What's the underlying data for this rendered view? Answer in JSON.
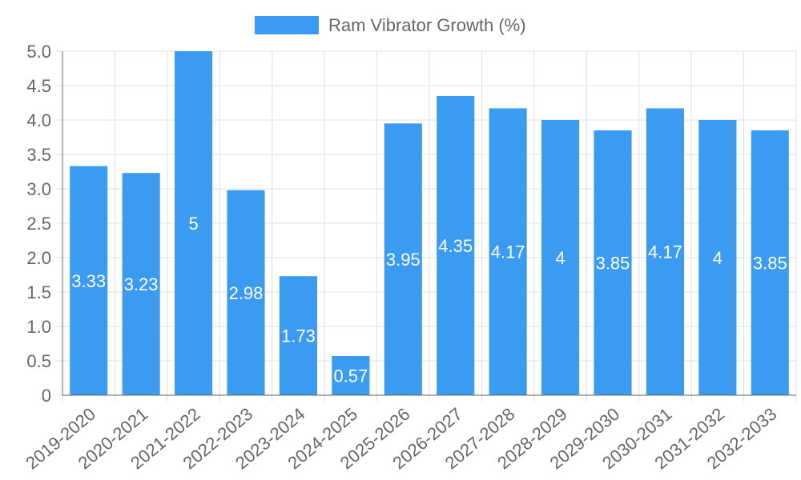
{
  "chart_data": {
    "type": "bar",
    "title": "",
    "xlabel": "",
    "ylabel": "",
    "categories": [
      "2019-2020",
      "2020-2021",
      "2021-2022",
      "2022-2023",
      "2023-2024",
      "2024-2025",
      "2025-2026",
      "2026-2027",
      "2027-2028",
      "2028-2029",
      "2029-2030",
      "2030-2031",
      "2031-2032",
      "2032-2033"
    ],
    "series": [
      {
        "name": "Ram Vibrator Growth (%)",
        "values": [
          3.33,
          3.23,
          5,
          2.98,
          1.73,
          0.57,
          3.95,
          4.35,
          4.17,
          4,
          3.85,
          4.17,
          4,
          3.85
        ],
        "labels": [
          "3.33",
          "3.23",
          "5",
          "2.98",
          "1.73",
          "0.57",
          "3.95",
          "4.35",
          "4.17",
          "4",
          "3.85",
          "4.17",
          "4",
          "3.85"
        ]
      }
    ],
    "ylim": [
      0,
      5
    ],
    "yticks": [
      "0",
      "0.5",
      "1.0",
      "1.5",
      "2.0",
      "2.5",
      "3.0",
      "3.5",
      "4.0",
      "4.5",
      "5.0"
    ],
    "grid": true,
    "legend": "top-center",
    "colors": {
      "bar": "#3b9bf0",
      "grid": "#e0e0e0",
      "axis": "#666666",
      "label": "#ffffff"
    }
  }
}
